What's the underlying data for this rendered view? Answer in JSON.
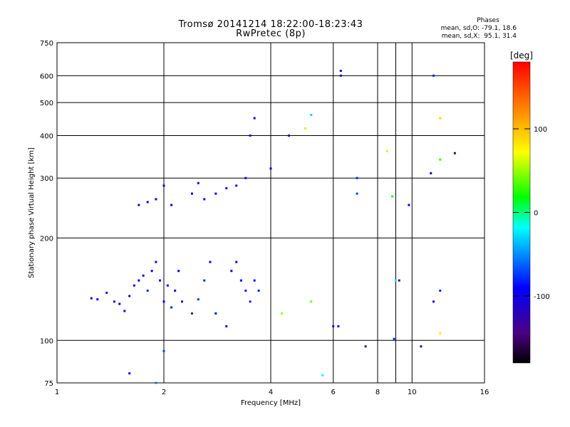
{
  "title_line1": "Tromsø 20141214 18:22:00-18:23:43",
  "title_line2": "RwPretec (8p)",
  "phase": {
    "header": "Phases",
    "o_line": "mean, sd,O: -79.1, 18.6",
    "x_line": "mean, sd,X:  95.1, 31.4"
  },
  "colorbar": {
    "unit": "[deg]",
    "tick_labels": [
      "100",
      "0",
      "-100"
    ],
    "tick_values": [
      100,
      0,
      -100
    ],
    "range": [
      -180,
      180
    ]
  },
  "chart_data": {
    "type": "scatter",
    "xlabel": "Frequency [MHz]",
    "ylabel": "Stationary phase Virtual Height [km]",
    "x_scale": "log",
    "y_scale": "log",
    "xlim": [
      1,
      16
    ],
    "ylim": [
      75,
      750
    ],
    "x_tick_values": [
      1,
      2,
      4,
      6,
      8,
      9,
      10,
      16
    ],
    "x_tick_labels": [
      "1",
      "2",
      "4",
      "6",
      "8",
      "",
      "10",
      "16"
    ],
    "y_tick_values": [
      75,
      100,
      200,
      300,
      400,
      500,
      600,
      750
    ],
    "y_tick_labels": [
      "75",
      "100",
      "200",
      "300",
      "400",
      "500",
      "600",
      "750"
    ],
    "grid": true,
    "series": [
      {
        "points": [
          [
            1.25,
            133,
            -100
          ],
          [
            1.3,
            132,
            -90
          ],
          [
            1.38,
            138,
            -110
          ],
          [
            1.45,
            130,
            -100
          ],
          [
            1.5,
            128,
            -95
          ],
          [
            1.55,
            122,
            -100
          ],
          [
            1.6,
            135,
            -110
          ],
          [
            1.65,
            145,
            -100
          ],
          [
            1.7,
            150,
            -90
          ],
          [
            1.75,
            155,
            -100
          ],
          [
            1.8,
            140,
            -80
          ],
          [
            1.85,
            160,
            -100
          ],
          [
            1.9,
            170,
            -95
          ],
          [
            1.95,
            150,
            -85
          ],
          [
            2.0,
            130,
            -100
          ],
          [
            2.05,
            145,
            -90
          ],
          [
            2.1,
            125,
            -80
          ],
          [
            2.15,
            140,
            -100
          ],
          [
            2.2,
            160,
            -90
          ],
          [
            2.25,
            130,
            -85
          ],
          [
            2.4,
            120,
            -80
          ],
          [
            2.5,
            132,
            -75
          ],
          [
            2.6,
            150,
            -80
          ],
          [
            2.7,
            170,
            -90
          ],
          [
            2.8,
            120,
            -85
          ],
          [
            3.0,
            110,
            -90
          ],
          [
            3.1,
            160,
            -100
          ],
          [
            3.2,
            170,
            -95
          ],
          [
            3.3,
            150,
            -90
          ],
          [
            3.4,
            140,
            -85
          ],
          [
            3.5,
            130,
            -80
          ],
          [
            3.6,
            150,
            -90
          ],
          [
            3.7,
            140,
            -85
          ],
          [
            1.7,
            250,
            -100
          ],
          [
            1.8,
            255,
            -95
          ],
          [
            1.9,
            260,
            -100
          ],
          [
            2.0,
            285,
            -90
          ],
          [
            2.1,
            250,
            -95
          ],
          [
            2.4,
            270,
            -100
          ],
          [
            2.5,
            290,
            -95
          ],
          [
            2.6,
            260,
            -90
          ],
          [
            2.8,
            270,
            -100
          ],
          [
            3.0,
            280,
            -95
          ],
          [
            3.2,
            285,
            -100
          ],
          [
            3.4,
            300,
            -100
          ],
          [
            3.5,
            400,
            -100
          ],
          [
            3.6,
            450,
            -100
          ],
          [
            4.0,
            320,
            -100
          ],
          [
            4.5,
            400,
            -95
          ],
          [
            6.3,
            620,
            -100
          ],
          [
            6.3,
            600,
            -95
          ],
          [
            7.0,
            300,
            -80
          ],
          [
            7.0,
            270,
            -70
          ],
          [
            6.2,
            110,
            -100
          ],
          [
            6.0,
            110,
            -100
          ],
          [
            5.2,
            460,
            -30
          ],
          [
            5.0,
            420,
            60
          ],
          [
            8.5,
            360,
            60
          ],
          [
            8.8,
            265,
            10
          ],
          [
            11.5,
            600,
            -80
          ],
          [
            12.0,
            450,
            90
          ],
          [
            12.0,
            340,
            30
          ],
          [
            13.2,
            355,
            -130
          ],
          [
            9.8,
            250,
            -90
          ],
          [
            11.3,
            310,
            -100
          ],
          [
            1.9,
            75,
            -30
          ],
          [
            2.0,
            93,
            -70
          ],
          [
            1.6,
            80,
            -100
          ],
          [
            5.6,
            79,
            -20
          ],
          [
            7.4,
            96,
            -140
          ],
          [
            8.9,
            101,
            -80
          ],
          [
            10.6,
            96,
            -130
          ],
          [
            11.5,
            130,
            -100
          ],
          [
            12.0,
            140,
            -80
          ],
          [
            12.0,
            105,
            80
          ],
          [
            9.0,
            150,
            -20
          ],
          [
            9.2,
            150,
            -120
          ],
          [
            5.2,
            130,
            40
          ],
          [
            4.3,
            120,
            50
          ]
        ]
      }
    ]
  }
}
